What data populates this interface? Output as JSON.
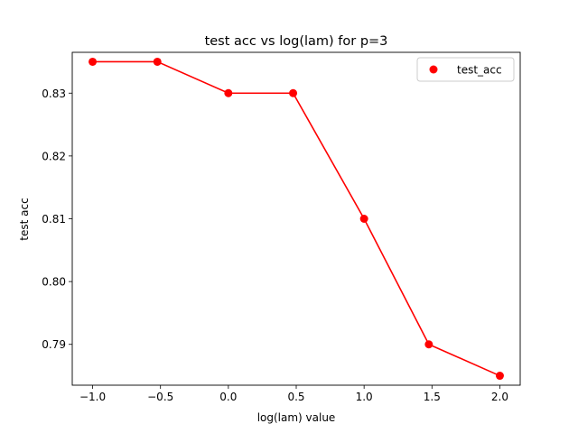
{
  "chart_data": {
    "type": "line",
    "title": "test acc vs log(lam) for p=3",
    "xlabel": "log(lam) value",
    "ylabel": "test acc",
    "xlim": [
      -1.15,
      2.15
    ],
    "ylim": [
      0.7835,
      0.8365
    ],
    "xticks": [
      -1.0,
      -0.5,
      0.0,
      0.5,
      1.0,
      1.5,
      2.0
    ],
    "xtick_labels": [
      "−1.0",
      "−0.5",
      "0.0",
      "0.5",
      "1.0",
      "1.5",
      "2.0"
    ],
    "yticks": [
      0.79,
      0.8,
      0.81,
      0.82,
      0.83
    ],
    "ytick_labels": [
      "0.79",
      "0.80",
      "0.81",
      "0.82",
      "0.83"
    ],
    "grid": false,
    "legend_position": "upper right",
    "series": [
      {
        "name": "test_acc",
        "color": "#ff0000",
        "marker": "circle",
        "x": [
          -1.0,
          -0.523,
          0.0,
          0.477,
          1.0,
          1.477,
          2.0
        ],
        "y": [
          0.835,
          0.835,
          0.83,
          0.83,
          0.81,
          0.79,
          0.785
        ]
      }
    ]
  }
}
